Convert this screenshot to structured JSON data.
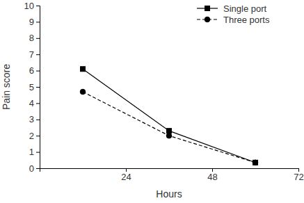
{
  "chart_data": {
    "type": "line",
    "x_label": "Hours",
    "y_label": "Pain score",
    "x": [
      12,
      36,
      60
    ],
    "series": [
      {
        "name": "Single port",
        "color": "#000000",
        "marker": "square",
        "line_style": "solid",
        "values": [
          6.1,
          2.3,
          0.35
        ]
      },
      {
        "name": "Three ports",
        "color": "#000000",
        "marker": "circle",
        "line_style": "dashed",
        "values": [
          4.7,
          2.0,
          0.35
        ]
      }
    ],
    "xlim": [
      0,
      72
    ],
    "xticks": [
      24,
      48,
      72
    ],
    "ylim": [
      0,
      10
    ],
    "yticks": [
      0,
      1,
      2,
      3,
      4,
      5,
      6,
      7,
      8,
      9,
      10
    ],
    "legend": "upper right"
  }
}
